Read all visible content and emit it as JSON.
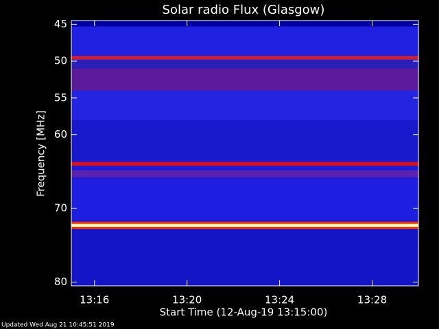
{
  "chart_data": {
    "type": "spectrogram",
    "title": "Solar radio Flux (Glasgow)",
    "x_label": "Start Time (12-Aug-19 13:15:00)",
    "y_label": "Frequency [MHz]",
    "footer": "Updated Wed Aug 21 10:45:51 2019",
    "xlim": [
      "13:15",
      "13:30"
    ],
    "xticks": [
      "13:16",
      "13:20",
      "13:24",
      "13:28"
    ],
    "ylim": [
      80.5,
      44.5
    ],
    "yticks": [
      45,
      50,
      55,
      60,
      70,
      80
    ],
    "background": "#1a1ad8",
    "bands": [
      {
        "from": 44.5,
        "to": 45.3,
        "color": "#0000a0"
      },
      {
        "from": 45.3,
        "to": 49.2,
        "color": "#2020e0"
      },
      {
        "from": 49.3,
        "to": 49.8,
        "color": "#d02030"
      },
      {
        "from": 50,
        "to": 51,
        "color": "#2a20b8"
      },
      {
        "from": 51,
        "to": 54,
        "color": "#5a1a9a"
      },
      {
        "from": 54,
        "to": 58,
        "color": "#2424e0"
      },
      {
        "from": 58,
        "to": 63.5,
        "color": "#1818cc"
      },
      {
        "from": 63.7,
        "to": 64.2,
        "color": "#e01010"
      },
      {
        "from": 64.8,
        "to": 65.8,
        "color": "#5a20b0"
      },
      {
        "from": 66,
        "to": 71.5,
        "color": "#1e1ee0"
      },
      {
        "from": 71.8,
        "to": 72.8,
        "color": "#ff3000"
      },
      {
        "from": 72.1,
        "to": 72.5,
        "color": "#ffffc0"
      },
      {
        "from": 72.8,
        "to": 80.5,
        "color": "#1515c8"
      }
    ]
  }
}
